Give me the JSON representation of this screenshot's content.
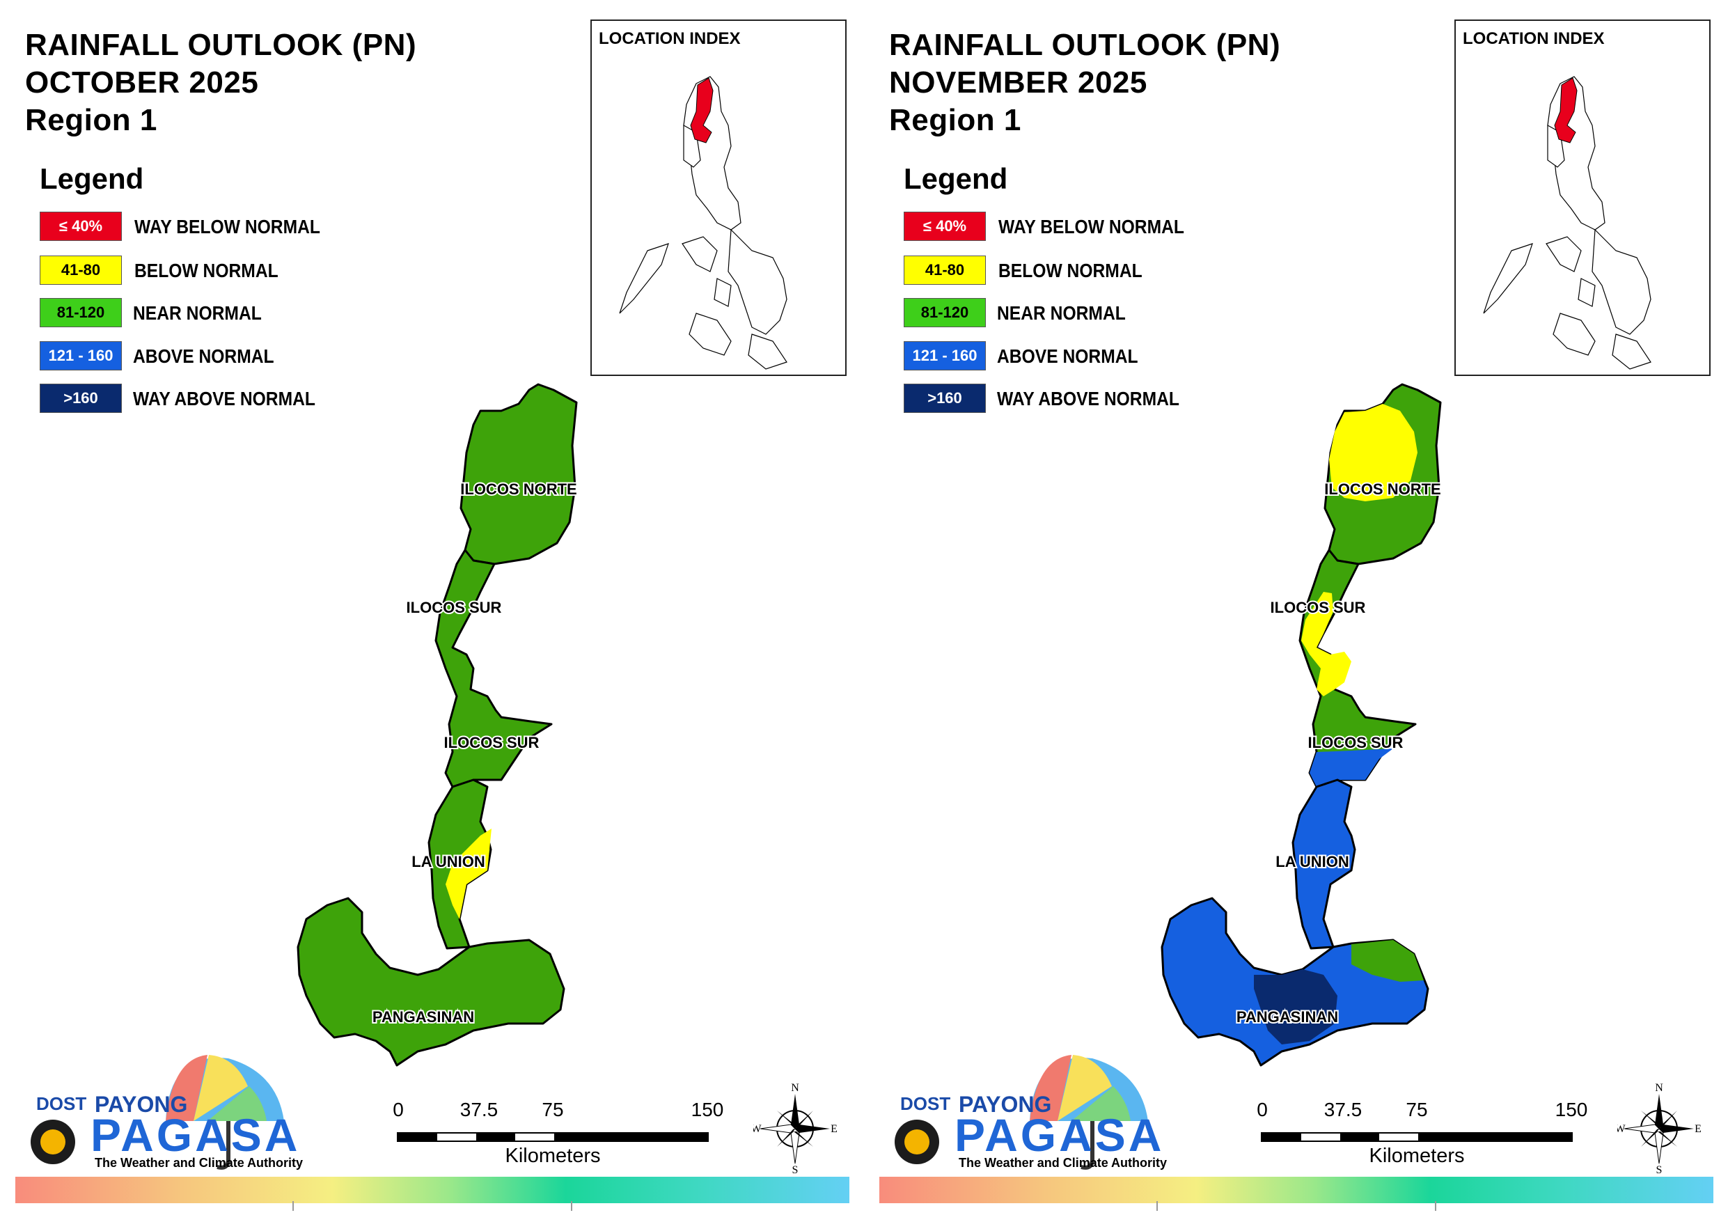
{
  "legend": {
    "title": "Legend",
    "items": [
      {
        "range": "≤ 40%",
        "label": "WAY BELOW NORMAL",
        "color": "#e8001c",
        "text_color": "#ffffff"
      },
      {
        "range": "41-80",
        "label": "BELOW NORMAL",
        "color": "#ffff00",
        "text_color": "#000000"
      },
      {
        "range": "81-120",
        "label": "NEAR NORMAL",
        "color": "#3ecf1a",
        "text_color": "#000000"
      },
      {
        "range": "121 - 160",
        "label": "ABOVE NORMAL",
        "color": "#1560e0",
        "text_color": "#ffffff"
      },
      {
        "range": ">160",
        "label": "WAY ABOVE NORMAL",
        "color": "#0a2a6e",
        "text_color": "#ffffff"
      }
    ]
  },
  "inset": {
    "title": "LOCATION INDEX",
    "highlight_color": "#e8001c"
  },
  "provinces": {
    "ilocos_norte": "ILOCOS NORTE",
    "ilocos_sur_1": "ILOCOS SUR",
    "ilocos_sur_2": "ILOCOS SUR",
    "la_union": "LA UNION",
    "pangasinan": "PANGASINAN"
  },
  "scale": {
    "ticks": [
      "0",
      "37.5",
      "75",
      "150"
    ],
    "unit": "Kilometers"
  },
  "compass": {
    "n": "N",
    "s": "S",
    "e": "E",
    "w": "W"
  },
  "logo": {
    "dost": "DOST",
    "payong": "PAYONG",
    "pagasa": "PAGASA",
    "tagline": "The Weather and Climate Authority"
  },
  "panels": [
    {
      "title_line1": "RAINFALL OUTLOOK (PN)",
      "title_line2": "OCTOBER 2025",
      "title_line3": "Region 1",
      "fills": {
        "ilocos_norte": "near_normal",
        "ilocos_sur": "near_normal",
        "la_union": "near_normal",
        "pangasinan": "near_normal"
      },
      "notes": "La Union coast has a small below-normal (41-80) patch"
    },
    {
      "title_line1": "RAINFALL OUTLOOK (PN)",
      "title_line2": "NOVEMBER 2025",
      "title_line3": "Region 1",
      "fills": {
        "ilocos_norte": "below_and_near_normal",
        "ilocos_sur": "below_and_near_normal",
        "la_union": "above_normal",
        "pangasinan": "above_and_way_above_normal"
      },
      "notes": "Northern Ilocos Norte and coastal Ilocos Sur below normal; La Union and Pangasinan above normal with a way-above-normal core in central Pangasinan"
    }
  ]
}
